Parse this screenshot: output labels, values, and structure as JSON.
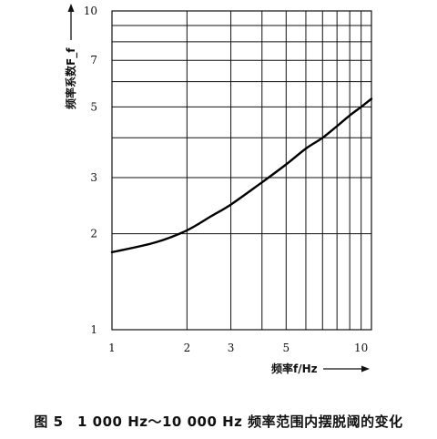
{
  "caption": "图 5　1 000 Hz～10 000 Hz 频率范围内摆脱阈的变化",
  "chart_data": {
    "type": "line",
    "xlabel": "频率f/Hz",
    "ylabel": "频率系数F_f",
    "x_scale": "log",
    "y_scale": "log",
    "xlim": [
      1,
      11
    ],
    "ylim": [
      1,
      10
    ],
    "grid": true,
    "x_ticks": [
      1,
      2,
      3,
      5,
      10
    ],
    "y_ticks": [
      1,
      2,
      3,
      5,
      7,
      10
    ],
    "x_gridlines": [
      1,
      2,
      3,
      4,
      5,
      6,
      7,
      8,
      9,
      10,
      11
    ],
    "y_gridlines": [
      1,
      2,
      3,
      4,
      5,
      6,
      7,
      8,
      9,
      10
    ],
    "series": [
      {
        "x": [
          1,
          1.5,
          2,
          2.5,
          3,
          4,
          5,
          6,
          7,
          8,
          9,
          10,
          11
        ],
        "y": [
          1.75,
          1.88,
          2.05,
          2.27,
          2.47,
          2.9,
          3.3,
          3.7,
          4.0,
          4.35,
          4.7,
          5.0,
          5.3
        ]
      }
    ]
  }
}
